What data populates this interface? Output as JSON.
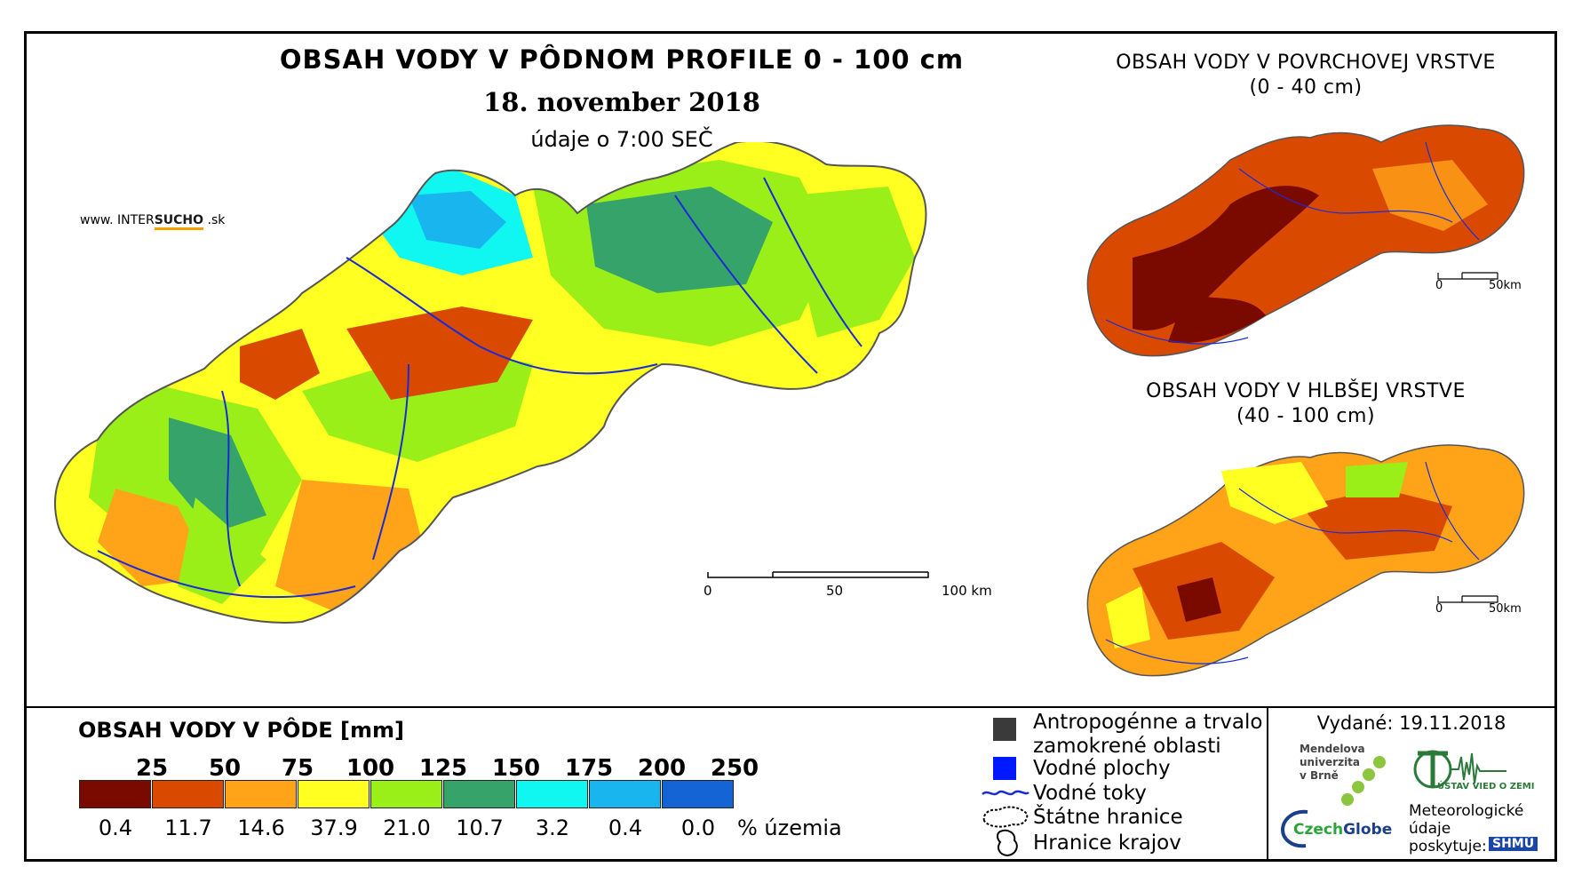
{
  "title": {
    "main": "OBSAH VODY V PÔDNOM PROFILE 0 - 100 cm",
    "date": "18. november 2018",
    "time": "údaje o 7:00 SEČ"
  },
  "website": {
    "prefix": "www. INTER",
    "brand": "SUCHO",
    "suffix": " .sk"
  },
  "main_scale": {
    "labels": [
      "0",
      "50",
      "100 km"
    ]
  },
  "inset_surface": {
    "title_line1": "OBSAH VODY V POVRCHOVEJ VRSTVE",
    "title_line2": "(0 - 40 cm)",
    "scale_labels": [
      "0",
      "50km"
    ]
  },
  "inset_deep": {
    "title_line1": "OBSAH VODY V HLBŠEJ VRSTVE",
    "title_line2": "(40 - 100 cm)",
    "scale_labels": [
      "0",
      "50km"
    ]
  },
  "legend": {
    "title": "OBSAH VODY V PÔDE [mm]",
    "thresholds": [
      "25",
      "50",
      "75",
      "100",
      "125",
      "150",
      "175",
      "200",
      "250"
    ],
    "classes": [
      {
        "color": "#7a0a00",
        "percent": "0.4"
      },
      {
        "color": "#d94a00",
        "percent": "11.7"
      },
      {
        "color": "#ffa319",
        "percent": "14.6"
      },
      {
        "color": "#ffff21",
        "percent": "37.9"
      },
      {
        "color": "#9bef19",
        "percent": "21.0"
      },
      {
        "color": "#36a36a",
        "percent": "10.7"
      },
      {
        "color": "#10f7f2",
        "percent": "3.2"
      },
      {
        "color": "#19b5ef",
        "percent": "0.4"
      },
      {
        "color": "#1464d6",
        "percent": "0.0"
      }
    ],
    "percent_unit": "% územia"
  },
  "map_key": {
    "anthropogenic_line1": "Antropogénne a trvalo",
    "anthropogenic_line2": "zamokrené oblasti",
    "water_bodies": "Vodné plochy",
    "rivers": "Vodné toky",
    "state_border": "Štátne hranice",
    "region_border": "Hranice krajov",
    "colors": {
      "anthropogenic": "#3a3a3a",
      "water_bodies": "#0019ff",
      "rivers": "#1a2bd6"
    }
  },
  "issued": {
    "label": "Vydané: 19.11.2018",
    "mendel_line1": "Mendelova",
    "mendel_line2": "univerzita",
    "mendel_line3": "v Brně",
    "czechglobe_a": "Czech",
    "czechglobe_b": "Globe",
    "institute": "ÚSTAV VIED O ZEMI",
    "met_line1": "Meteorologické",
    "met_line2": "údaje",
    "met_line3": "poskytuje:",
    "shmu": "SHMÚ"
  }
}
